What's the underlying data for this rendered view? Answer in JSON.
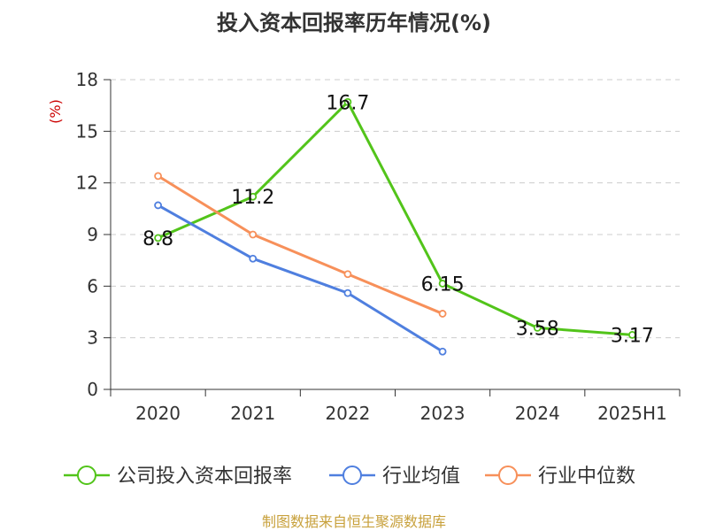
{
  "chart_data": {
    "type": "line",
    "title": "投入资本回报率历年情况(%)",
    "ylabel": "(%)",
    "categories": [
      "2020",
      "2021",
      "2022",
      "2023",
      "2024",
      "2025H1"
    ],
    "ylim": [
      0,
      18
    ],
    "yticks": [
      0,
      3,
      6,
      9,
      12,
      15,
      18
    ],
    "grid": true,
    "legend_position": "bottom",
    "series": [
      {
        "name": "公司投入资本回报率",
        "color": "#52c41a",
        "values": [
          8.8,
          11.2,
          16.7,
          6.15,
          3.58,
          3.17
        ],
        "labels": [
          "8.8",
          "11.2",
          "16.7",
          "6.15",
          "3.58",
          "3.17"
        ]
      },
      {
        "name": "行业均值",
        "color": "#4f7fdf",
        "values": [
          10.7,
          7.6,
          5.6,
          2.2,
          null,
          null
        ]
      },
      {
        "name": "行业中位数",
        "color": "#f7905a",
        "values": [
          12.4,
          9.0,
          6.7,
          4.4,
          null,
          null
        ]
      }
    ]
  },
  "source": "制图数据来自恒生聚源数据库",
  "colors": {
    "unit": "#cc0000",
    "source": "#c8a13c",
    "axis": "#333333",
    "grid": "#cccccc"
  }
}
